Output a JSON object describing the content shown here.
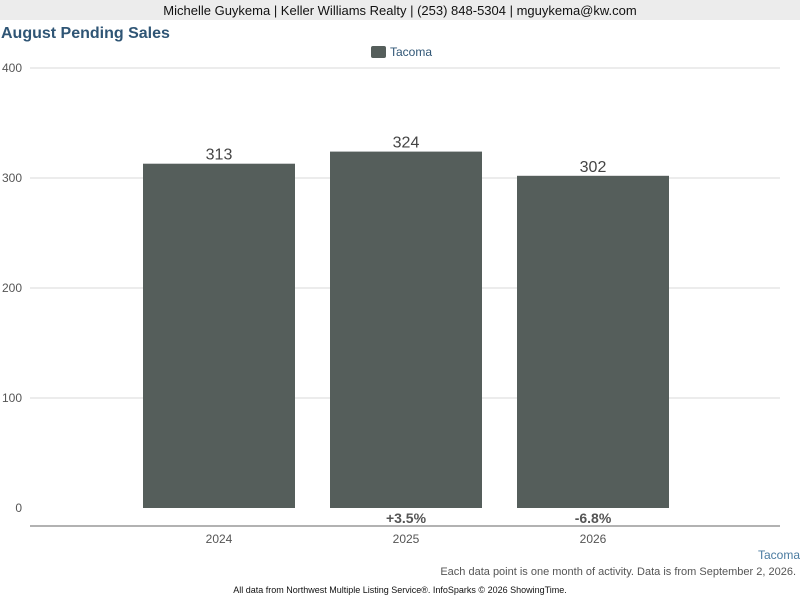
{
  "header": {
    "contact": "Michelle Guykema | Keller Williams Realty | (253) 848-5304 | mguykema@kw.com"
  },
  "chart_data": {
    "type": "bar",
    "title": "August Pending Sales",
    "categories": [
      "2024",
      "2025",
      "2026"
    ],
    "series": [
      {
        "name": "Tacoma",
        "values": [
          313,
          324,
          302
        ],
        "color": "#555e5b"
      }
    ],
    "value_labels": [
      "313",
      "324",
      "302"
    ],
    "change_labels": [
      "",
      "+3.5%",
      "-6.8%"
    ],
    "ylim": [
      0,
      400
    ],
    "yticks": [
      0,
      100,
      200,
      300,
      400
    ],
    "grid": true,
    "legend": "top-center"
  },
  "footer": {
    "series_tag": "Tacoma",
    "note": "Each data point is one month of activity. Data is from September 2, 2026.",
    "credits": "All data from Northwest Multiple Listing Service®. InfoSparks © 2026 ShowingTime."
  }
}
